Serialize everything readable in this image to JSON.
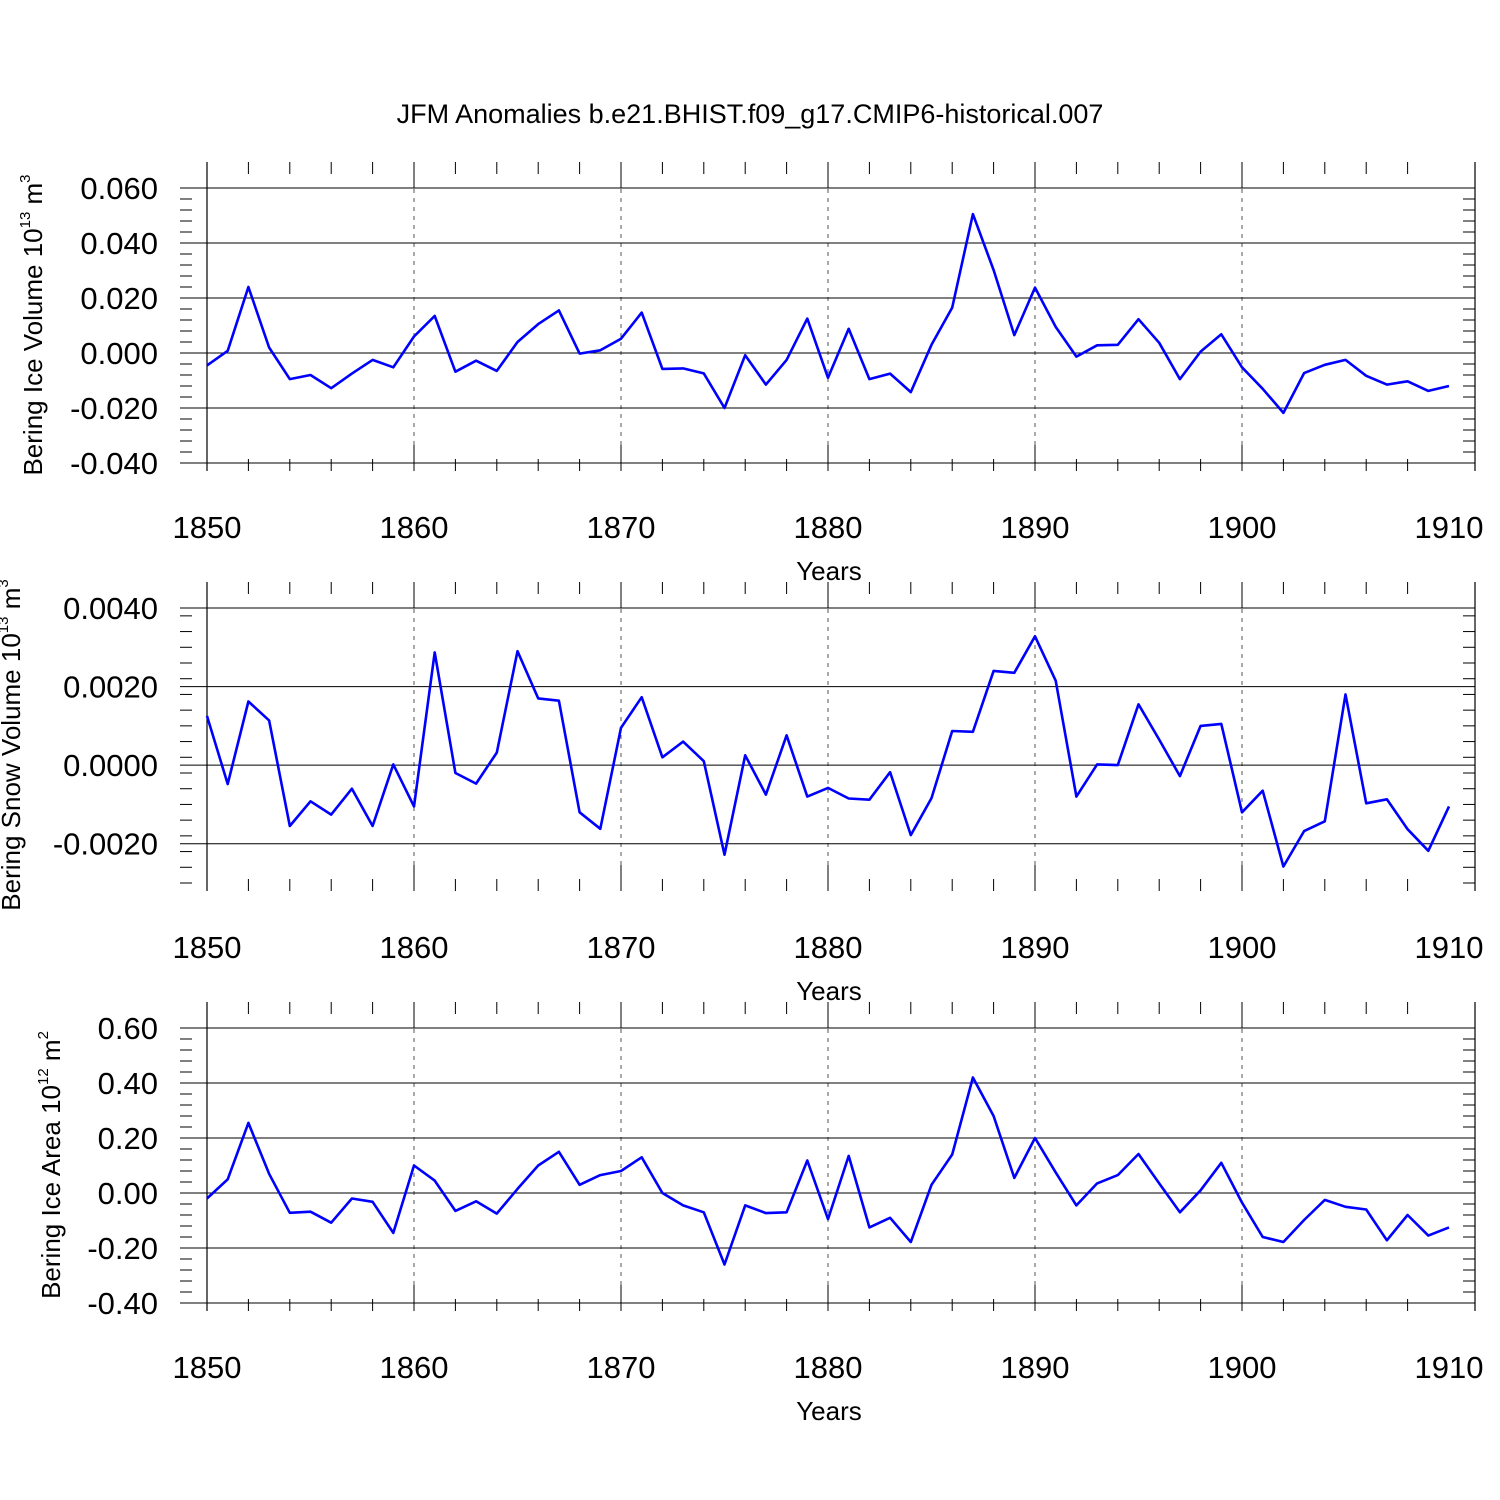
{
  "chart_data": {
    "type": "line",
    "title": "JFM Anomalies b.e21.BHIST.f09_g17.CMIP6-historical.007",
    "line_color": "#0000ff",
    "panels": [
      {
        "type": "line",
        "ylabel": "Bering Ice Volume 10",
        "ylabel_sup": "13",
        "ylabel_unit": " m",
        "ylabel_unit_sup": "3",
        "xlabel": "Years",
        "xlim": [
          1850,
          1910
        ],
        "ylim": [
          -0.04,
          0.06
        ],
        "yticks": [
          -0.04,
          -0.02,
          0.0,
          0.02,
          0.04,
          0.06
        ],
        "ytick_labels": [
          "-0.040",
          "-0.020",
          "0.000",
          "0.020",
          "0.040",
          "0.060"
        ],
        "xticks": [
          1850,
          1860,
          1870,
          1880,
          1890,
          1900,
          1910
        ],
        "xtick_labels": [
          "1850",
          "1860",
          "1870",
          "1880",
          "1890",
          "1900",
          "1910"
        ],
        "x": [
          1850,
          1851,
          1852,
          1853,
          1854,
          1855,
          1856,
          1857,
          1858,
          1859,
          1860,
          1861,
          1862,
          1863,
          1864,
          1865,
          1866,
          1867,
          1868,
          1869,
          1870,
          1871,
          1872,
          1873,
          1874,
          1875,
          1876,
          1877,
          1878,
          1879,
          1880,
          1881,
          1882,
          1883,
          1884,
          1885,
          1886,
          1887,
          1888,
          1889,
          1890,
          1891,
          1892,
          1893,
          1894,
          1895,
          1896,
          1897,
          1898,
          1899,
          1900,
          1901,
          1902,
          1903,
          1904,
          1905,
          1906,
          1907,
          1908,
          1909,
          1910
        ],
        "y": [
          -0.0045,
          0.0008,
          0.024,
          0.002,
          -0.0095,
          -0.008,
          -0.0128,
          -0.0075,
          -0.0025,
          -0.0052,
          0.006,
          0.0135,
          -0.0068,
          -0.0028,
          -0.0065,
          0.004,
          0.0105,
          0.0155,
          -0.0002,
          0.001,
          0.0052,
          0.0147,
          -0.0058,
          -0.0056,
          -0.0074,
          -0.02,
          -0.0008,
          -0.0115,
          -0.0025,
          0.0125,
          -0.009,
          0.0088,
          -0.0095,
          -0.0075,
          -0.0142,
          0.003,
          0.0165,
          0.0505,
          0.0302,
          0.0065,
          0.0238,
          0.0095,
          -0.0013,
          0.0028,
          0.003,
          0.0123,
          0.0037,
          -0.0095,
          0.0005,
          0.0068,
          -0.0052,
          -0.013,
          -0.0218,
          -0.0073,
          -0.0043,
          -0.0025,
          -0.0083,
          -0.0115,
          -0.0103,
          -0.0138,
          -0.012
        ]
      },
      {
        "type": "line",
        "ylabel": "Bering Snow Volume 10",
        "ylabel_sup": "13",
        "ylabel_unit": " m",
        "ylabel_unit_sup": "3",
        "xlabel": "Years",
        "xlim": [
          1850,
          1910
        ],
        "ylim": [
          -0.003,
          0.004
        ],
        "yticks": [
          -0.002,
          0.0,
          0.002,
          0.004
        ],
        "ytick_labels": [
          "-0.0020",
          "0.0000",
          "0.0020",
          "0.0040"
        ],
        "xticks": [
          1850,
          1860,
          1870,
          1880,
          1890,
          1900,
          1910
        ],
        "xtick_labels": [
          "1850",
          "1860",
          "1870",
          "1880",
          "1890",
          "1900",
          "1910"
        ],
        "x": [
          1850,
          1851,
          1852,
          1853,
          1854,
          1855,
          1856,
          1857,
          1858,
          1859,
          1860,
          1861,
          1862,
          1863,
          1864,
          1865,
          1866,
          1867,
          1868,
          1869,
          1870,
          1871,
          1872,
          1873,
          1874,
          1875,
          1876,
          1877,
          1878,
          1879,
          1880,
          1881,
          1882,
          1883,
          1884,
          1885,
          1886,
          1887,
          1888,
          1889,
          1890,
          1891,
          1892,
          1893,
          1894,
          1895,
          1896,
          1897,
          1898,
          1899,
          1900,
          1901,
          1902,
          1903,
          1904,
          1905,
          1906,
          1907,
          1908,
          1909,
          1910
        ],
        "y": [
          0.00125,
          -0.00048,
          0.00162,
          0.00114,
          -0.00155,
          -0.00092,
          -0.00126,
          -0.0006,
          -0.00155,
          2e-05,
          -0.00105,
          0.00287,
          -0.0002,
          -0.00047,
          0.00032,
          0.0029,
          0.0017,
          0.00164,
          -0.0012,
          -0.00162,
          0.00095,
          0.00173,
          0.0002,
          0.0006,
          0.0001,
          -0.00228,
          0.00025,
          -0.00075,
          0.00076,
          -0.0008,
          -0.00058,
          -0.00085,
          -0.00088,
          -0.00018,
          -0.00178,
          -0.00084,
          0.00087,
          0.00085,
          0.0024,
          0.00235,
          0.00328,
          0.00215,
          -0.0008,
          2e-05,
          0.0,
          0.00155,
          0.00065,
          -0.00028,
          0.001,
          0.00105,
          -0.0012,
          -0.00065,
          -0.00258,
          -0.00168,
          -0.00143,
          0.0018,
          -0.00097,
          -0.00087,
          -0.00163,
          -0.00218,
          -0.00105
        ]
      },
      {
        "type": "line",
        "ylabel": "Bering Ice Area 10",
        "ylabel_sup": "12",
        "ylabel_unit": " m",
        "ylabel_unit_sup": "2",
        "xlabel": "Years",
        "xlim": [
          1850,
          1910
        ],
        "ylim": [
          -0.4,
          0.6
        ],
        "yticks": [
          -0.4,
          -0.2,
          0.0,
          0.2,
          0.4,
          0.6
        ],
        "ytick_labels": [
          "-0.40",
          "-0.20",
          "0.00",
          "0.20",
          "0.40",
          "0.60"
        ],
        "xticks": [
          1850,
          1860,
          1870,
          1880,
          1890,
          1900,
          1910
        ],
        "xtick_labels": [
          "1850",
          "1860",
          "1870",
          "1880",
          "1890",
          "1900",
          "1910"
        ],
        "x": [
          1850,
          1851,
          1852,
          1853,
          1854,
          1855,
          1856,
          1857,
          1858,
          1859,
          1860,
          1861,
          1862,
          1863,
          1864,
          1865,
          1866,
          1867,
          1868,
          1869,
          1870,
          1871,
          1872,
          1873,
          1874,
          1875,
          1876,
          1877,
          1878,
          1879,
          1880,
          1881,
          1882,
          1883,
          1884,
          1885,
          1886,
          1887,
          1888,
          1889,
          1890,
          1891,
          1892,
          1893,
          1894,
          1895,
          1896,
          1897,
          1898,
          1899,
          1900,
          1901,
          1902,
          1903,
          1904,
          1905,
          1906,
          1907,
          1908,
          1909,
          1910
        ],
        "y": [
          -0.02,
          0.05,
          0.255,
          0.07,
          -0.072,
          -0.068,
          -0.108,
          -0.02,
          -0.032,
          -0.145,
          0.1,
          0.045,
          -0.065,
          -0.03,
          -0.075,
          0.015,
          0.1,
          0.15,
          0.03,
          0.065,
          0.08,
          0.13,
          0.0,
          -0.045,
          -0.07,
          -0.26,
          -0.045,
          -0.073,
          -0.07,
          0.118,
          -0.095,
          0.135,
          -0.125,
          -0.09,
          -0.178,
          0.03,
          0.14,
          0.42,
          0.28,
          0.055,
          0.2,
          0.075,
          -0.045,
          0.035,
          0.065,
          0.142,
          0.035,
          -0.07,
          0.01,
          0.11,
          -0.035,
          -0.16,
          -0.178,
          -0.098,
          -0.025,
          -0.05,
          -0.06,
          -0.172,
          -0.08,
          -0.155,
          -0.125
        ]
      }
    ]
  }
}
